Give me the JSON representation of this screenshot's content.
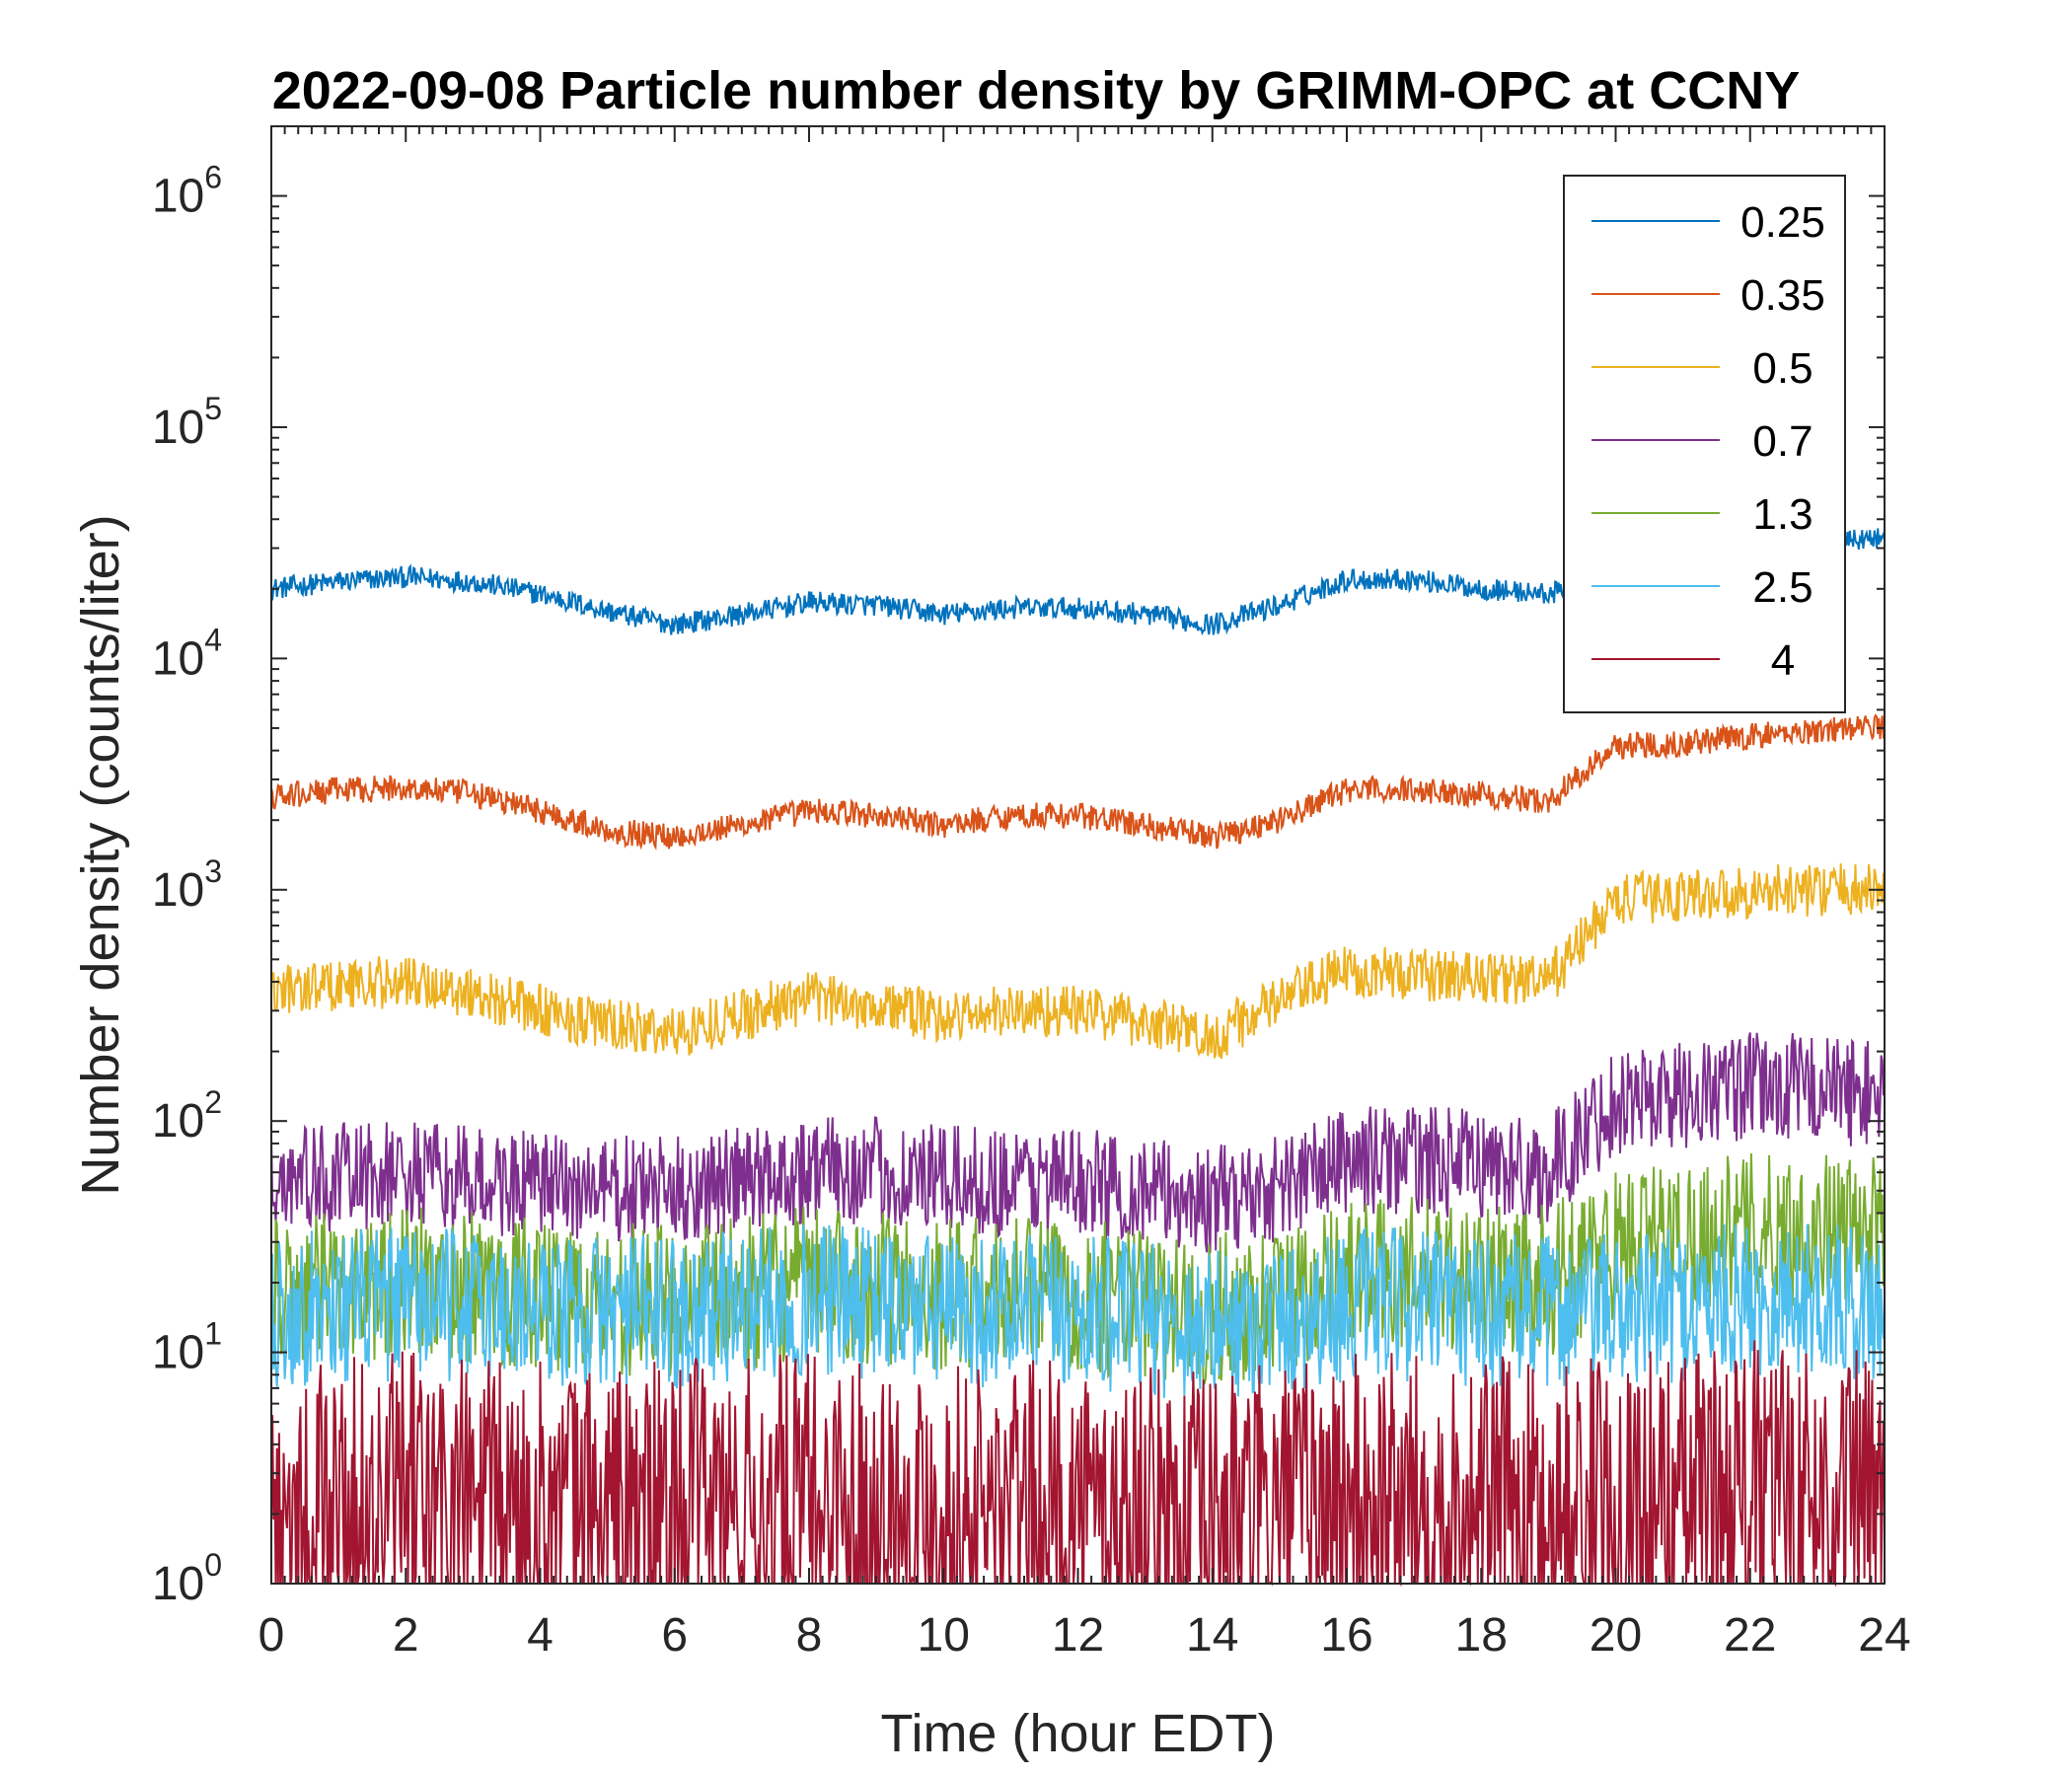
{
  "chart_data": {
    "type": "line",
    "title": "2022-09-08 Particle number density by GRIMM-OPC at CCNY",
    "xlabel": "Time (hour EDT)",
    "ylabel": "Number density (counts/liter)",
    "xlim": [
      0,
      24
    ],
    "ylim": [
      1,
      2000000
    ],
    "yscale": "log",
    "xticks": [
      0,
      2,
      4,
      6,
      8,
      10,
      12,
      14,
      16,
      18,
      20,
      22,
      24
    ],
    "yticks": [
      {
        "value": 1,
        "base": "10",
        "exp": "0"
      },
      {
        "value": 10,
        "base": "10",
        "exp": "1"
      },
      {
        "value": 100,
        "base": "10",
        "exp": "2"
      },
      {
        "value": 1000,
        "base": "10",
        "exp": "3"
      },
      {
        "value": 10000,
        "base": "10",
        "exp": "4"
      },
      {
        "value": 100000,
        "base": "10",
        "exp": "5"
      },
      {
        "value": 1000000,
        "base": "10",
        "exp": "6"
      }
    ],
    "legend_position": "top-right",
    "grid": false,
    "x": [
      0,
      1,
      2,
      3,
      4,
      5,
      6,
      7,
      8,
      9,
      10,
      11,
      12,
      13,
      14,
      15,
      16,
      17,
      18,
      19,
      20,
      21,
      22,
      23,
      24
    ],
    "series": [
      {
        "name": "0.25",
        "color": "#0072BD",
        "noise": 0.05,
        "values": [
          20000,
          21500,
          22500,
          21500,
          19000,
          16000,
          14000,
          15500,
          17500,
          17000,
          15500,
          16500,
          16500,
          15500,
          14000,
          17000,
          22000,
          22000,
          20000,
          19000,
          22000,
          25000,
          28000,
          32000,
          33000
        ]
      },
      {
        "name": "0.35",
        "color": "#D95319",
        "noise": 0.06,
        "values": [
          2500,
          2700,
          2750,
          2600,
          2200,
          1800,
          1700,
          1900,
          2200,
          2100,
          1900,
          2100,
          2100,
          1900,
          1700,
          2000,
          2700,
          2700,
          2600,
          2400,
          4200,
          4300,
          4600,
          4900,
          5100
        ]
      },
      {
        "name": "0.5",
        "color": "#EDB120",
        "noise": 0.12,
        "values": [
          370,
          390,
          400,
          360,
          300,
          260,
          240,
          290,
          340,
          320,
          280,
          300,
          300,
          270,
          230,
          330,
          450,
          430,
          420,
          400,
          900,
          950,
          980,
          1000,
          1000
        ]
      },
      {
        "name": "0.7",
        "color": "#7E2F8E",
        "noise": 0.25,
        "values": [
          55,
          57,
          58,
          55,
          52,
          50,
          50,
          55,
          62,
          60,
          55,
          55,
          55,
          50,
          45,
          52,
          68,
          68,
          65,
          60,
          125,
          130,
          140,
          140,
          130
        ]
      },
      {
        "name": "1.3",
        "color": "#77AC30",
        "noise": 0.35,
        "values": [
          18,
          19,
          20,
          19,
          18,
          17,
          17,
          18,
          20,
          19,
          18,
          18,
          18,
          16,
          15,
          17,
          22,
          22,
          21,
          20,
          30,
          32,
          34,
          34,
          32
        ]
      },
      {
        "name": "2.5",
        "color": "#4DBEEE",
        "noise": 0.35,
        "values": [
          15,
          16,
          16,
          16,
          15,
          15,
          15,
          16,
          17,
          16,
          15,
          15,
          15,
          14,
          13,
          14,
          16,
          16,
          15,
          15,
          15,
          16,
          17,
          17,
          16
        ]
      },
      {
        "name": "4",
        "color": "#A2142F",
        "noise": 0.7,
        "values": [
          2,
          2,
          2.2,
          2.1,
          2,
          2,
          2,
          2.1,
          2.2,
          2.1,
          2,
          2,
          2,
          1.9,
          1.8,
          2,
          2.2,
          2.2,
          2.1,
          2,
          2.2,
          2.3,
          2.5,
          2.3,
          2.2
        ]
      }
    ]
  }
}
